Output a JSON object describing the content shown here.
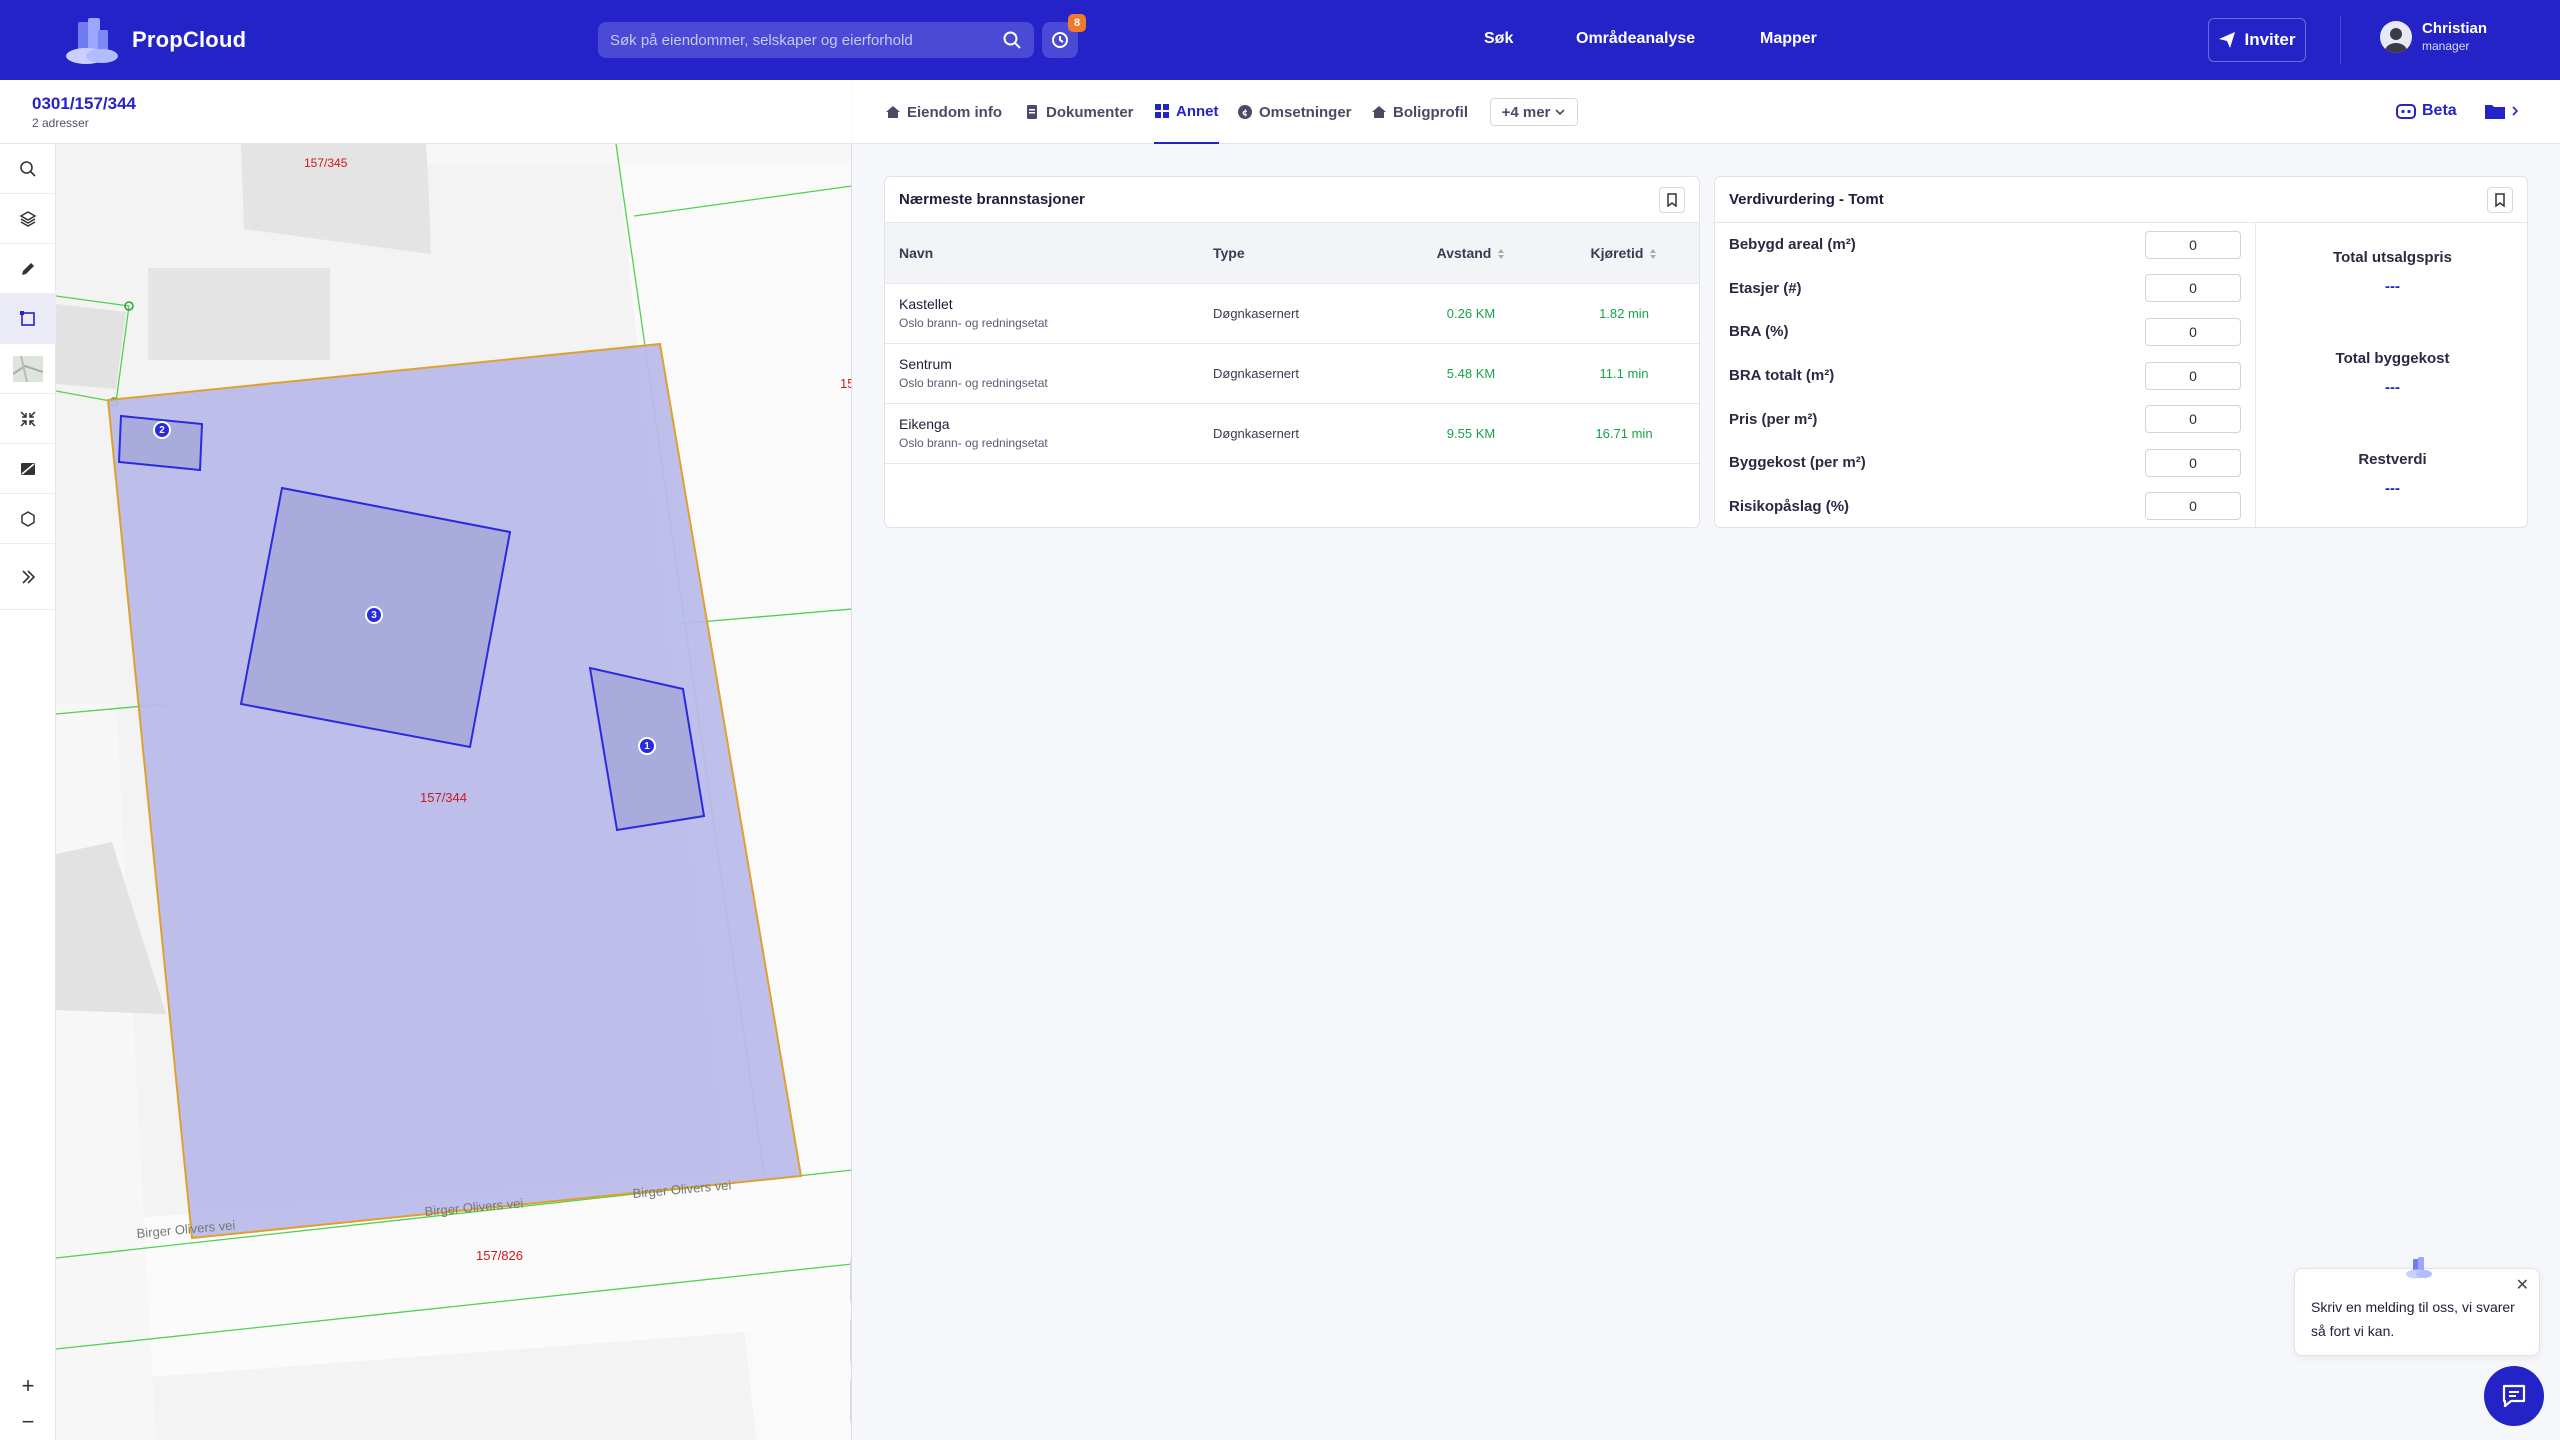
{
  "app": {
    "name": "PropCloud"
  },
  "search": {
    "placeholder": "Søk på eiendommer, selskaper og eierforhold"
  },
  "history": {
    "badge": "8"
  },
  "nav": {
    "sok": "Søk",
    "omrade": "Områdeanalyse",
    "mapper": "Mapper"
  },
  "invite": {
    "label": "Inviter"
  },
  "user": {
    "name": "Christian",
    "role": "manager"
  },
  "property": {
    "id": "0301/157/344",
    "addresses": "2 adresser"
  },
  "map": {
    "labels": {
      "north": "157/345",
      "main": "157/344",
      "south": "157/826",
      "edge": "15",
      "road1": "Birger Olivers vei",
      "road2": "Birger Olivers vei",
      "road3": "Birger Olivers vei"
    },
    "markers": [
      "1",
      "2",
      "3"
    ],
    "list_badge": "1"
  },
  "tabs": [
    {
      "label": "Eiendom info"
    },
    {
      "label": "Dokumenter"
    },
    {
      "label": "Annet"
    },
    {
      "label": "Omsetninger"
    },
    {
      "label": "Boligprofil"
    }
  ],
  "more_tabs": "+4 mer",
  "beta": "Beta",
  "fire_stations": {
    "title": "Nærmeste brannstasjoner",
    "headers": {
      "name": "Navn",
      "type": "Type",
      "distance": "Avstand",
      "drive": "Kjøretid"
    },
    "rows": [
      {
        "name": "Kastellet",
        "org": "Oslo brann- og redningsetat",
        "type": "Døgnkasernert",
        "distance": "0.26 KM",
        "drive": "1.82 min"
      },
      {
        "name": "Sentrum",
        "org": "Oslo brann- og redningsetat",
        "type": "Døgnkasernert",
        "distance": "5.48 KM",
        "drive": "11.1 min"
      },
      {
        "name": "Eikenga",
        "org": "Oslo brann- og redningsetat",
        "type": "Døgnkasernert",
        "distance": "9.55 KM",
        "drive": "16.71 min"
      }
    ]
  },
  "valuation": {
    "title": "Verdivurdering - Tomt",
    "fields": [
      {
        "label": "Bebygd areal (m²)",
        "value": "0"
      },
      {
        "label": "Etasjer (#)",
        "value": "0"
      },
      {
        "label": "BRA (%)",
        "value": "0"
      },
      {
        "label": "BRA totalt (m²)",
        "value": "0"
      },
      {
        "label": "Pris (per m²)",
        "value": "0"
      },
      {
        "label": "Byggekost (per m²)",
        "value": "0"
      },
      {
        "label": "Risikopåslag (%)",
        "value": "0"
      }
    ],
    "summary": [
      {
        "label": "Total utsalgspris",
        "value": "---"
      },
      {
        "label": "Total byggekost",
        "value": "---"
      },
      {
        "label": "Restverdi",
        "value": "---"
      }
    ]
  },
  "chat": {
    "message": "Skriv en melding til oss, vi svarer så fort vi kan."
  },
  "zoom": {
    "in": "+",
    "out": "−"
  },
  "colors": {
    "primary": "#2323c8",
    "accent": "#f07a2c",
    "parcel_fill": "#b9bbe9",
    "parcel_border": "#e0a030",
    "building": "#2a2ae0",
    "boundary": "#4fd24f"
  }
}
